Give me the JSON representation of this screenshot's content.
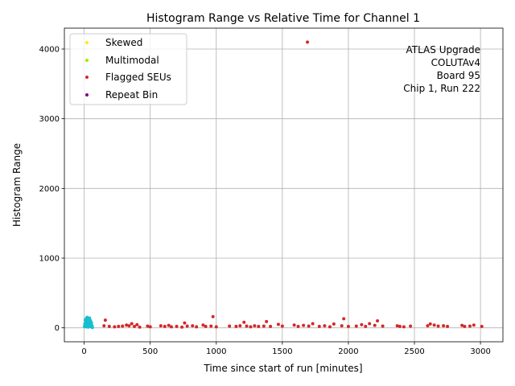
{
  "chart_data": {
    "type": "scatter",
    "title": "Histogram Range vs Relative Time for Channel 1",
    "xlabel": "Time since start of run [minutes]",
    "ylabel": "Histogram Range",
    "xlim": [
      -150,
      3170
    ],
    "ylim": [
      -200,
      4300
    ],
    "xticks": [
      0,
      500,
      1000,
      1500,
      2000,
      2500,
      3000
    ],
    "yticks": [
      0,
      1000,
      2000,
      3000,
      4000
    ],
    "grid": true,
    "legend_position": "upper-left",
    "annotation": [
      "ATLAS Upgrade",
      "COLUTAv4",
      "Board 95",
      "Chip 1, Run 222"
    ],
    "series": [
      {
        "name": "",
        "color": "#17becf",
        "points": [
          [
            2,
            20
          ],
          [
            5,
            60
          ],
          [
            8,
            110
          ],
          [
            10,
            40
          ],
          [
            12,
            90
          ],
          [
            15,
            130
          ],
          [
            18,
            70
          ],
          [
            20,
            20
          ],
          [
            22,
            150
          ],
          [
            25,
            100
          ],
          [
            28,
            50
          ],
          [
            30,
            10
          ],
          [
            32,
            120
          ],
          [
            35,
            80
          ],
          [
            38,
            30
          ],
          [
            40,
            140
          ],
          [
            42,
            60
          ],
          [
            45,
            110
          ],
          [
            48,
            20
          ],
          [
            50,
            90
          ],
          [
            52,
            40
          ],
          [
            55,
            70
          ],
          [
            58,
            10
          ],
          [
            60,
            30
          ],
          [
            62,
            5
          ],
          [
            14,
            15
          ],
          [
            26,
            25
          ],
          [
            36,
            45
          ],
          [
            46,
            35
          ],
          [
            56,
            15
          ]
        ]
      },
      {
        "name": "Skewed",
        "color": "#ffee00",
        "points": []
      },
      {
        "name": "Multimodal",
        "color": "#99ee00",
        "points": []
      },
      {
        "name": "Flagged SEUs",
        "color": "#d62728",
        "points": [
          [
            150,
            30
          ],
          [
            160,
            110
          ],
          [
            190,
            20
          ],
          [
            230,
            15
          ],
          [
            260,
            20
          ],
          [
            290,
            25
          ],
          [
            320,
            40
          ],
          [
            340,
            30
          ],
          [
            360,
            60
          ],
          [
            380,
            20
          ],
          [
            400,
            45
          ],
          [
            420,
            10
          ],
          [
            480,
            25
          ],
          [
            500,
            15
          ],
          [
            580,
            30
          ],
          [
            610,
            20
          ],
          [
            640,
            35
          ],
          [
            660,
            15
          ],
          [
            700,
            20
          ],
          [
            740,
            10
          ],
          [
            760,
            70
          ],
          [
            780,
            25
          ],
          [
            820,
            30
          ],
          [
            850,
            15
          ],
          [
            900,
            40
          ],
          [
            920,
            20
          ],
          [
            960,
            25
          ],
          [
            975,
            160
          ],
          [
            1000,
            15
          ],
          [
            1100,
            25
          ],
          [
            1150,
            20
          ],
          [
            1180,
            30
          ],
          [
            1210,
            80
          ],
          [
            1230,
            25
          ],
          [
            1260,
            15
          ],
          [
            1290,
            30
          ],
          [
            1320,
            20
          ],
          [
            1360,
            25
          ],
          [
            1380,
            90
          ],
          [
            1410,
            20
          ],
          [
            1470,
            50
          ],
          [
            1500,
            25
          ],
          [
            1590,
            40
          ],
          [
            1620,
            20
          ],
          [
            1660,
            35
          ],
          [
            1690,
            4100
          ],
          [
            1700,
            25
          ],
          [
            1730,
            60
          ],
          [
            1780,
            20
          ],
          [
            1820,
            30
          ],
          [
            1860,
            15
          ],
          [
            1890,
            55
          ],
          [
            1950,
            30
          ],
          [
            1965,
            130
          ],
          [
            2000,
            20
          ],
          [
            2060,
            25
          ],
          [
            2100,
            45
          ],
          [
            2130,
            20
          ],
          [
            2160,
            60
          ],
          [
            2200,
            35
          ],
          [
            2220,
            100
          ],
          [
            2260,
            25
          ],
          [
            2370,
            30
          ],
          [
            2390,
            20
          ],
          [
            2420,
            15
          ],
          [
            2470,
            25
          ],
          [
            2600,
            30
          ],
          [
            2620,
            55
          ],
          [
            2650,
            40
          ],
          [
            2680,
            25
          ],
          [
            2720,
            30
          ],
          [
            2750,
            20
          ],
          [
            2860,
            35
          ],
          [
            2880,
            20
          ],
          [
            2920,
            25
          ],
          [
            2950,
            40
          ],
          [
            3010,
            20
          ]
        ]
      },
      {
        "name": "Repeat Bin",
        "color": "#800080",
        "points": []
      }
    ]
  }
}
